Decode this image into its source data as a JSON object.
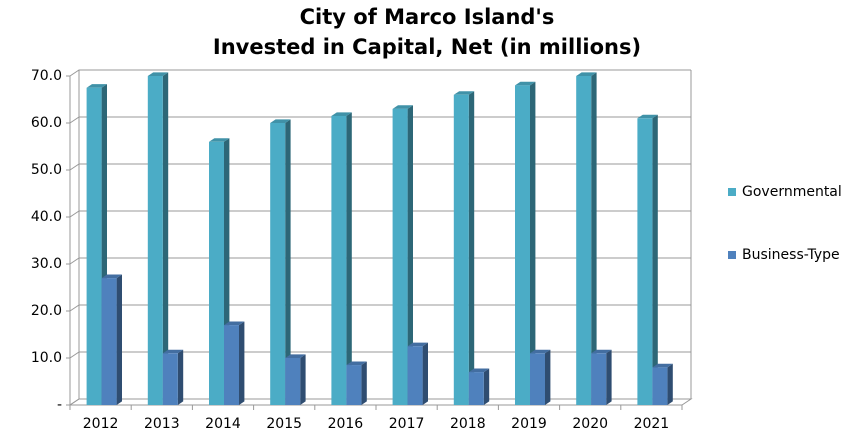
{
  "chart_data": {
    "type": "bar3d",
    "title": [
      "City of Marco Island's",
      "Invested in Capital, Net (in millions)"
    ],
    "categories": [
      "2012",
      "2013",
      "2014",
      "2015",
      "2016",
      "2017",
      "2018",
      "2019",
      "2020",
      "2021"
    ],
    "series": [
      {
        "name": "Governmental",
        "color": "#4bacc6",
        "values": [
          67.5,
          70,
          56,
          60,
          61.5,
          63,
          66,
          68,
          70,
          61
        ]
      },
      {
        "name": "Business-Type",
        "color": "#4f81bd",
        "values": [
          27,
          11,
          17,
          10,
          8.5,
          12.5,
          7,
          11,
          11,
          8
        ]
      }
    ],
    "ylim": [
      0,
      70
    ],
    "yticks": [
      {
        "value": 0,
        "label": "-"
      },
      {
        "value": 10,
        "label": "10.0"
      },
      {
        "value": 20,
        "label": "20.0"
      },
      {
        "value": 30,
        "label": "30.0"
      },
      {
        "value": 40,
        "label": "40.0"
      },
      {
        "value": 50,
        "label": "50.0"
      },
      {
        "value": 60,
        "label": "60.0"
      },
      {
        "value": 70,
        "label": "70.0"
      }
    ],
    "grid": true,
    "legend": "right"
  }
}
